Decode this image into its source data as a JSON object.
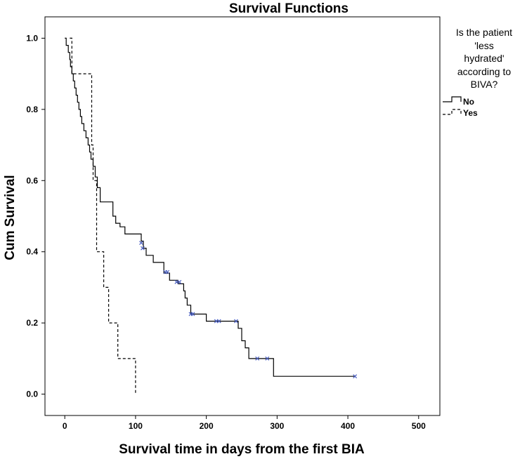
{
  "chart_data": {
    "type": "line",
    "subtype": "kaplan-meier-step",
    "title": "Survival Functions",
    "xlabel": "Survival time in days from the first BIA",
    "ylabel": "Cum Survival",
    "xlim": [
      -28,
      530
    ],
    "ylim": [
      -0.06,
      1.06
    ],
    "xticks": [
      0,
      100,
      200,
      300,
      400,
      500
    ],
    "yticks": [
      0.0,
      0.2,
      0.4,
      0.6,
      0.8,
      1.0
    ],
    "xtick_labels": [
      "0",
      "100",
      "200",
      "300",
      "400",
      "500"
    ],
    "ytick_labels": [
      "0.0",
      "0.2",
      "0.4",
      "0.6",
      "0.8",
      "1.0"
    ],
    "legend": {
      "title_lines": [
        "Is the patient",
        "'less",
        "hydrated'",
        "according to",
        "BIVA?"
      ],
      "position": "right"
    },
    "censor_color": "#4a5fc1",
    "series": [
      {
        "name": "No",
        "style": "solid",
        "color": "#000000",
        "x": [
          0,
          2,
          5,
          7,
          8,
          10,
          12,
          14,
          16,
          18,
          20,
          22,
          24,
          27,
          30,
          33,
          35,
          37,
          40,
          43,
          46,
          50,
          68,
          72,
          78,
          85,
          108,
          111,
          115,
          125,
          140,
          148,
          160,
          168,
          170,
          173,
          178,
          200,
          245,
          250,
          255,
          260,
          295,
          410
        ],
        "y": [
          1.0,
          0.98,
          0.96,
          0.94,
          0.92,
          0.9,
          0.88,
          0.86,
          0.84,
          0.82,
          0.8,
          0.78,
          0.76,
          0.74,
          0.72,
          0.7,
          0.68,
          0.66,
          0.64,
          0.61,
          0.58,
          0.54,
          0.5,
          0.48,
          0.47,
          0.45,
          0.43,
          0.41,
          0.39,
          0.37,
          0.34,
          0.32,
          0.31,
          0.29,
          0.27,
          0.25,
          0.225,
          0.205,
          0.185,
          0.15,
          0.13,
          0.1,
          0.05,
          0.05
        ],
        "censored": [
          {
            "x": 108,
            "y": 0.425
          },
          {
            "x": 110,
            "y": 0.41
          },
          {
            "x": 142,
            "y": 0.343
          },
          {
            "x": 145,
            "y": 0.343
          },
          {
            "x": 158,
            "y": 0.315
          },
          {
            "x": 162,
            "y": 0.315
          },
          {
            "x": 178,
            "y": 0.225
          },
          {
            "x": 181,
            "y": 0.225
          },
          {
            "x": 214,
            "y": 0.205
          },
          {
            "x": 218,
            "y": 0.205
          },
          {
            "x": 242,
            "y": 0.205
          },
          {
            "x": 272,
            "y": 0.1
          },
          {
            "x": 286,
            "y": 0.1
          },
          {
            "x": 410,
            "y": 0.05
          }
        ]
      },
      {
        "name": "Yes",
        "style": "dashed",
        "color": "#000000",
        "x": [
          7,
          10,
          35,
          38,
          40,
          45,
          55,
          62,
          75,
          98,
          100
        ],
        "y": [
          1.0,
          0.9,
          0.9,
          0.7,
          0.6,
          0.4,
          0.3,
          0.2,
          0.1,
          0.1,
          0.0
        ],
        "censored": []
      }
    ]
  }
}
